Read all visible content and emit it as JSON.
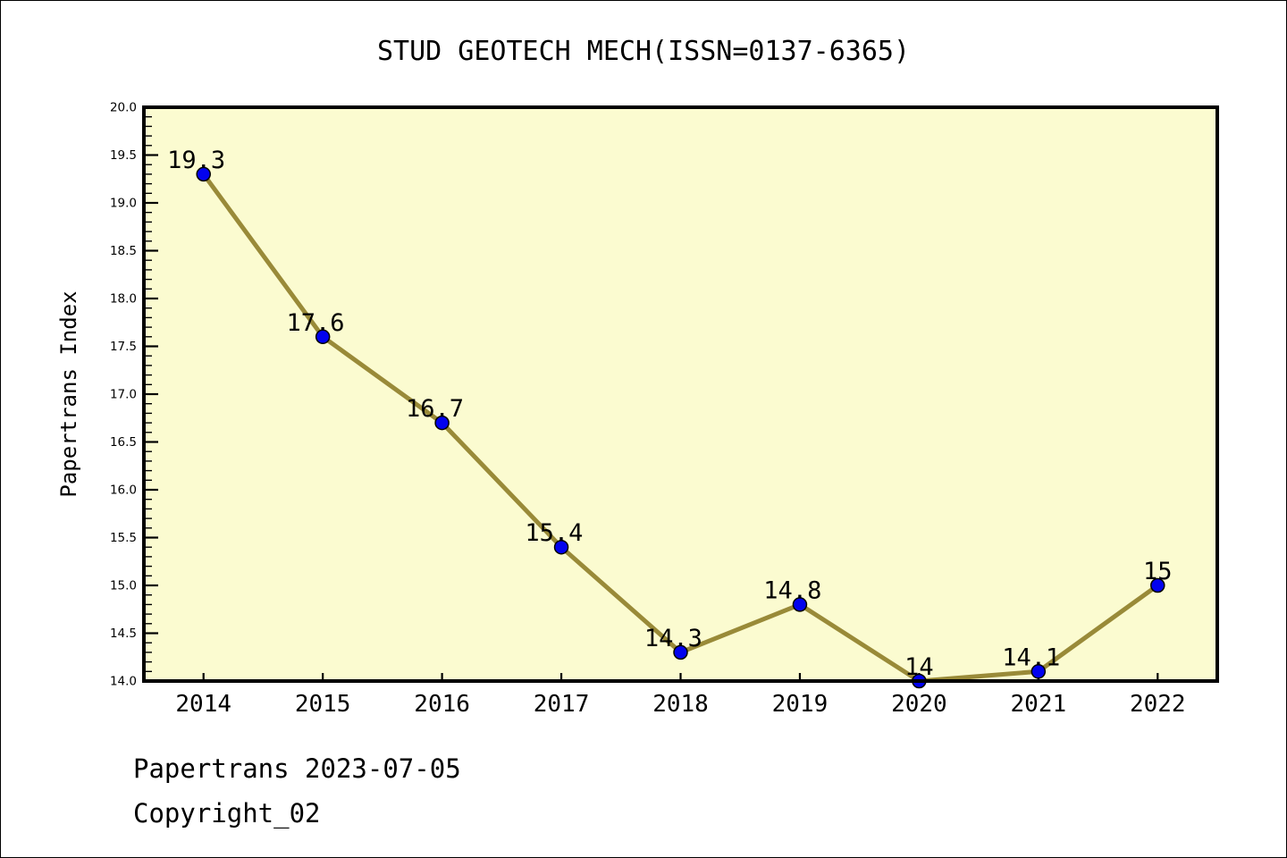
{
  "title": "STUD GEOTECH MECH(ISSN=0137-6365)",
  "footer": {
    "line1": "Papertrans 2023-07-05",
    "line2": "Copyright_02"
  },
  "chart_data": {
    "type": "line",
    "title": "STUD GEOTECH MECH(ISSN=0137-6365)",
    "xlabel": "",
    "ylabel": "Papertrans Index",
    "x": [
      2014,
      2015,
      2016,
      2017,
      2018,
      2019,
      2020,
      2021,
      2022
    ],
    "values": [
      19.3,
      17.6,
      16.7,
      15.4,
      14.3,
      14.8,
      14,
      14.1,
      15
    ],
    "point_labels": [
      "19.3",
      "17.6",
      "16.7",
      "15.4",
      "14.3",
      "14.8",
      "14",
      "14.1",
      "15"
    ],
    "ylim": [
      14.0,
      20.0
    ],
    "ytick_major_step": 0.5,
    "ytick_minor_step": 0.1,
    "xlim_padding": 0.5,
    "grid": false,
    "legend": null,
    "colors": {
      "line": "#998A38",
      "marker_fill": "#0202EE",
      "marker_edge": "#000000",
      "plot_bg": "#FBFBD0",
      "figure_bg": "#FFFFFF",
      "axis": "#000000",
      "text": "#000000"
    }
  }
}
